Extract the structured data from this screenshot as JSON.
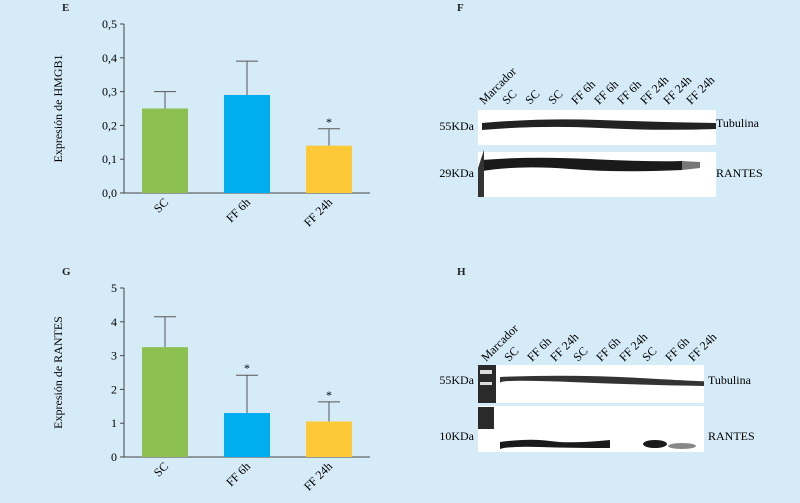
{
  "panels": {
    "E": "E",
    "F": "F",
    "G": "G",
    "H": "H"
  },
  "chart_data": [
    {
      "id": "E",
      "type": "bar",
      "categories": [
        "SC",
        "FF 6h",
        "FF 24h"
      ],
      "values": [
        0.25,
        0.29,
        0.14
      ],
      "errors": [
        0.05,
        0.1,
        0.05
      ],
      "significance": [
        "",
        "",
        "*"
      ],
      "colors": [
        "#8cc152",
        "#00adef",
        "#fdc936"
      ],
      "ylabel": "Expresión de HMGB1",
      "ylim": [
        0,
        0.5
      ],
      "yticks": [
        "0,0",
        "0,1",
        "0,2",
        "0,3",
        "0,4",
        "0,5"
      ]
    },
    {
      "id": "G",
      "type": "bar",
      "categories": [
        "SC",
        "FF 6h",
        "FF 24h"
      ],
      "values": [
        3.25,
        1.3,
        1.05
      ],
      "errors": [
        0.9,
        1.12,
        0.58
      ],
      "significance": [
        "",
        "*",
        "*"
      ],
      "colors": [
        "#8cc152",
        "#00adef",
        "#fdc936"
      ],
      "ylabel": "Expresión de RANTES",
      "ylim": [
        0,
        5
      ],
      "yticks": [
        "0",
        "1",
        "2",
        "3",
        "4",
        "5"
      ]
    }
  ],
  "blots": {
    "F": {
      "lanes": [
        "Marcador",
        "SC",
        "SC",
        "SC",
        "FF 6h",
        "FF 6h",
        "FF 6h",
        "FF 24h",
        "FF 24h",
        "FF 24h"
      ],
      "markers": [
        "55KDa",
        "29KDa"
      ],
      "proteins": [
        "Tubulina",
        "RANTES"
      ]
    },
    "H": {
      "lanes": [
        "Marcador",
        "SC",
        "FF 6h",
        "FF 24h",
        "SC",
        "FF 6h",
        "FF 24h",
        "SC",
        "FF 6h",
        "FF 24h"
      ],
      "markers": [
        "55KDa",
        "10KDa"
      ],
      "proteins": [
        "Tubulina",
        "RANTES"
      ]
    }
  }
}
